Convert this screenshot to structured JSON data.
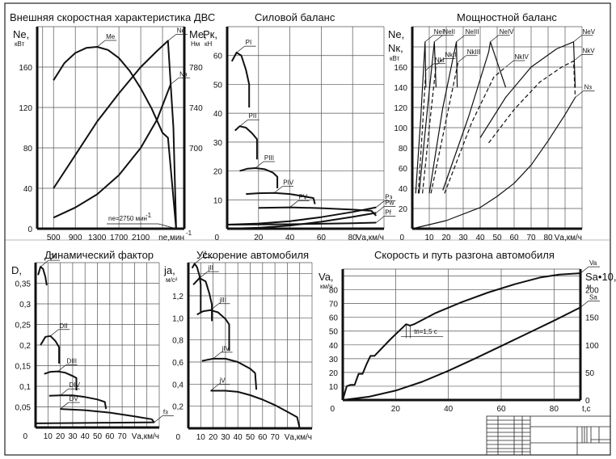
{
  "sheet": {
    "frame_color": "#222222",
    "grid_color": "#555555",
    "curve_color": "#111111"
  },
  "chart_data": [
    {
      "id": "engine",
      "type": "line",
      "title": "Внешняя скоростная характеристика ДВС",
      "xlabel": "nе,мин",
      "xlabel_sup": "-1",
      "ylabel": "Nе,",
      "ylabel_unit": "кВт",
      "y2label": "Mе,",
      "y2label_unit": "Нм",
      "xlim": [
        200,
        2900
      ],
      "ylim": [
        0,
        200
      ],
      "y2lim": [
        620,
        820
      ],
      "x_ticks": [
        500,
        900,
        1300,
        1700,
        2100
      ],
      "y_ticks": [
        0,
        40,
        80,
        120,
        160
      ],
      "y2_ticks": [
        700,
        740,
        780
      ],
      "grid": true,
      "annotation": "nе=2750 мин",
      "annotation_sup": "-1",
      "series": [
        {
          "name": "Mе",
          "axis": "right",
          "x": [
            500,
            700,
            900,
            1100,
            1300,
            1500,
            1700,
            1900,
            2100,
            2300,
            2500,
            2600,
            2750
          ],
          "y": [
            767,
            784,
            794,
            799,
            800,
            797,
            789,
            776,
            759,
            739,
            715,
            710,
            620
          ]
        },
        {
          "name": "Nе",
          "axis": "left",
          "x": [
            500,
            900,
            1300,
            1700,
            2100,
            2400,
            2600,
            2700,
            2750
          ],
          "y": [
            40,
            73,
            106,
            134,
            160,
            176,
            186,
            100,
            0
          ]
        },
        {
          "name": "Nз",
          "axis": "left",
          "x": [
            500,
            900,
            1300,
            1700,
            2100,
            2400,
            2650
          ],
          "y": [
            11,
            21,
            34,
            53,
            80,
            108,
            143
          ]
        }
      ]
    },
    {
      "id": "force",
      "type": "line",
      "title": "Силовой баланс",
      "xlabel": "Vа,км/ч",
      "ylabel": "Pк,",
      "ylabel_unit": "кН",
      "xlim": [
        0,
        100
      ],
      "ylim": [
        0,
        70
      ],
      "x_ticks": [
        20,
        40,
        60,
        80
      ],
      "y_ticks": [
        10,
        20,
        30,
        40,
        50,
        60
      ],
      "origin_label": "0",
      "grid": true,
      "series": [
        {
          "name": "PI",
          "x": [
            3,
            6,
            9,
            12,
            14,
            14
          ],
          "y": [
            58,
            61,
            60,
            55,
            50,
            42
          ]
        },
        {
          "name": "PII",
          "x": [
            5,
            8,
            12,
            16,
            19,
            19
          ],
          "y": [
            34,
            35.5,
            35,
            33,
            31,
            24
          ]
        },
        {
          "name": "PIII",
          "x": [
            8,
            13,
            18,
            24,
            29,
            32,
            32
          ],
          "y": [
            20,
            20.8,
            21,
            20.6,
            19.5,
            18,
            14
          ]
        },
        {
          "name": "PIV",
          "x": [
            12,
            20,
            30,
            40,
            48,
            55,
            56
          ],
          "y": [
            12,
            12.3,
            12.4,
            12,
            11.3,
            10.6,
            8.5
          ]
        },
        {
          "name": "PV",
          "x": [
            20,
            40,
            60,
            80,
            92,
            95
          ],
          "y": [
            7.2,
            7.4,
            7.1,
            6.6,
            6.2,
            4.5
          ]
        },
        {
          "name": "Pw",
          "x": [
            0,
            20,
            40,
            60,
            80,
            95
          ],
          "y": [
            0,
            0.3,
            1.1,
            2.4,
            4.1,
            5.5
          ]
        },
        {
          "name": "Pf",
          "x": [
            0,
            20,
            40,
            60,
            80,
            95
          ],
          "y": [
            1.4,
            1.45,
            1.55,
            1.7,
            1.9,
            2.1
          ]
        },
        {
          "name": "Pз",
          "x": [
            0,
            20,
            40,
            60,
            80,
            95
          ],
          "y": [
            1.4,
            1.8,
            2.6,
            4.0,
            5.8,
            7.4
          ]
        }
      ],
      "labels": [
        "PI",
        "PII",
        "PIII",
        "PIV",
        "PV",
        "Pw",
        "Pf",
        "Pз"
      ]
    },
    {
      "id": "power",
      "type": "line",
      "title": "Мощностной баланс",
      "xlabel": "Vа,км/ч",
      "ylabel": "Nе,",
      "ylabel2": "Nк,",
      "ylabel_unit": "кВт",
      "xlim": [
        0,
        100
      ],
      "ylim": [
        0,
        200
      ],
      "x_ticks": [
        10,
        20,
        30,
        40,
        50,
        60,
        70,
        80
      ],
      "y_ticks": [
        20,
        40,
        60,
        80,
        100,
        120,
        140,
        160
      ],
      "origin_label": "0",
      "grid": true,
      "series": [
        {
          "name": "NeI",
          "style": "solid",
          "x": [
            2,
            5,
            7.5,
            8
          ],
          "y": [
            35,
            110,
            185,
            140
          ]
        },
        {
          "name": "NkI",
          "style": "dashed",
          "x": [
            3.5,
            6,
            8
          ],
          "y": [
            35,
            100,
            157
          ]
        },
        {
          "name": "NeII",
          "style": "solid",
          "x": [
            4,
            9,
            13,
            14
          ],
          "y": [
            35,
            120,
            185,
            140
          ]
        },
        {
          "name": "NkII",
          "style": "dashed",
          "x": [
            6,
            10,
            14
          ],
          "y": [
            35,
            100,
            162
          ]
        },
        {
          "name": "NeIII",
          "style": "solid",
          "x": [
            10,
            18,
            26,
            26.5
          ],
          "y": [
            35,
            120,
            185,
            140
          ]
        },
        {
          "name": "NkIII",
          "style": "dashed",
          "x": [
            11,
            19,
            27
          ],
          "y": [
            35,
            100,
            165
          ]
        },
        {
          "name": "NeIV",
          "style": "solid",
          "x": [
            18,
            33,
            45,
            46,
            55
          ],
          "y": [
            38,
            110,
            175,
            185,
            140
          ]
        },
        {
          "name": "NkIV",
          "style": "dashed",
          "x": [
            19,
            35,
            48,
            55
          ],
          "y": [
            35,
            105,
            150,
            160
          ]
        },
        {
          "name": "NeV",
          "style": "solid",
          "x": [
            40,
            55,
            70,
            85,
            95,
            96
          ],
          "y": [
            90,
            130,
            160,
            178,
            185,
            140
          ]
        },
        {
          "name": "NkV",
          "style": "dashed",
          "x": [
            45,
            60,
            75,
            88,
            95,
            96
          ],
          "y": [
            85,
            118,
            145,
            160,
            166,
            130
          ]
        },
        {
          "name": "Nз",
          "style": "solid",
          "x": [
            0,
            20,
            40,
            50,
            60,
            70,
            80,
            90,
            96
          ],
          "y": [
            0,
            8,
            21,
            32,
            45,
            63,
            87,
            113,
            130
          ]
        }
      ],
      "labels": [
        "NeI",
        "NeII",
        "NeIII",
        "NeIV",
        "NeV",
        "NkI",
        "NkII",
        "NkIII",
        "NkIV",
        "NkV",
        "Nз"
      ]
    },
    {
      "id": "dynamic",
      "type": "line",
      "title": "Динамический фактор",
      "xlabel": "Vа,км/ч",
      "ylabel": "D,",
      "xlim": [
        0,
        100
      ],
      "ylim": [
        0,
        0.4
      ],
      "x_ticks": [
        10,
        20,
        30,
        40,
        50,
        60,
        70
      ],
      "x_tick_labels": [
        "10",
        "20",
        "30",
        "40",
        "50",
        "60",
        "70"
      ],
      "y_ticks": [
        0.05,
        0.1,
        0.15,
        0.2,
        0.25,
        0.3,
        0.35
      ],
      "y_tick_labels": [
        "0,05",
        "0,1",
        "0,15",
        "0,2",
        "0,25",
        "0,3",
        "0,35"
      ],
      "origin_label": "0",
      "grid": true,
      "series": [
        {
          "name": "DI",
          "x": [
            2,
            4,
            6,
            8,
            9
          ],
          "y": [
            0.37,
            0.39,
            0.385,
            0.365,
            0.345
          ]
        },
        {
          "name": "DII",
          "x": [
            4,
            8,
            12,
            16,
            19,
            19
          ],
          "y": [
            0.2,
            0.22,
            0.222,
            0.21,
            0.195,
            0.155
          ]
        },
        {
          "name": "DIII",
          "x": [
            7,
            12,
            18,
            24,
            30,
            33,
            33
          ],
          "y": [
            0.13,
            0.135,
            0.136,
            0.133,
            0.125,
            0.12,
            0.09
          ]
        },
        {
          "name": "DIV",
          "x": [
            11,
            20,
            30,
            40,
            50,
            56,
            57
          ],
          "y": [
            0.077,
            0.078,
            0.078,
            0.074,
            0.068,
            0.062,
            0.045
          ]
        },
        {
          "name": "DV",
          "x": [
            20,
            40,
            60,
            80,
            94,
            96
          ],
          "y": [
            0.045,
            0.042,
            0.036,
            0.027,
            0.02,
            0.012
          ]
        },
        {
          "name": "fз",
          "x": [
            0,
            20,
            40,
            60,
            80,
            96
          ],
          "y": [
            0.01,
            0.0105,
            0.011,
            0.0115,
            0.012,
            0.0125
          ]
        }
      ],
      "labels": [
        "DI",
        "DII",
        "DIII",
        "DIV",
        "DV",
        "fз"
      ]
    },
    {
      "id": "accel",
      "type": "line",
      "title": "Ускорение автомобиля",
      "xlabel": "Vа,км/ч",
      "ylabel": "ja,",
      "ylabel_unit": "м/с²",
      "xlim": [
        0,
        100
      ],
      "ylim": [
        0,
        1.5
      ],
      "x_ticks": [
        10,
        20,
        30,
        40,
        50,
        60,
        70
      ],
      "y_ticks": [
        0.2,
        0.4,
        0.6,
        0.8,
        1.0,
        1.2
      ],
      "y_tick_labels": [
        "0,2",
        "0,4",
        "0,6",
        "0,8",
        "1,0",
        "1,2"
      ],
      "origin_label": "0",
      "grid": true,
      "series": [
        {
          "name": "jI",
          "x": [
            3,
            5,
            7,
            9,
            10,
            10
          ],
          "y": [
            1.45,
            1.49,
            1.46,
            1.38,
            1.3,
            1.05
          ]
        },
        {
          "name": "jII",
          "x": [
            4,
            9,
            14,
            17,
            19,
            19
          ],
          "y": [
            1.3,
            1.36,
            1.33,
            1.22,
            1.12,
            0.97
          ]
        },
        {
          "name": "jIII",
          "x": [
            7,
            12,
            18,
            24,
            30,
            33,
            33
          ],
          "y": [
            1.03,
            1.06,
            1.07,
            1.05,
            0.99,
            0.94,
            0.7
          ]
        },
        {
          "name": "jIV",
          "x": [
            11,
            20,
            30,
            40,
            50,
            54,
            55
          ],
          "y": [
            0.61,
            0.63,
            0.63,
            0.6,
            0.54,
            0.5,
            0.35
          ]
        },
        {
          "name": "jV",
          "x": [
            18,
            30,
            40,
            50,
            60,
            70,
            80,
            88,
            90
          ],
          "y": [
            0.34,
            0.34,
            0.33,
            0.3,
            0.26,
            0.21,
            0.15,
            0.1,
            0.0
          ]
        }
      ],
      "labels": [
        "jI",
        "jII",
        "jIII",
        "jIV",
        "jV"
      ]
    },
    {
      "id": "runup",
      "type": "line",
      "title": "Скорость и  путь разгона автомобиля",
      "xlabel": "t,c",
      "ylabel": "Va,",
      "ylabel_unit": "км/ч",
      "y2label": "Sa•10,",
      "y2label_unit": "м",
      "xlim": [
        0,
        90
      ],
      "ylim": [
        0,
        95
      ],
      "y2lim": [
        0,
        237.5
      ],
      "x_ticks": [
        20,
        40,
        60,
        80
      ],
      "y_ticks": [
        10,
        20,
        30,
        40,
        50,
        60,
        70,
        80
      ],
      "y2_ticks": [
        0,
        50,
        100,
        150,
        200
      ],
      "origin_label": "0",
      "annotation": "tп=1,5 с",
      "grid": true,
      "series": [
        {
          "name": "Va",
          "axis": "left",
          "x": [
            0,
            1.5,
            3,
            4.5,
            6,
            7.5,
            9,
            10.5,
            12,
            18,
            24,
            25.5,
            27,
            35,
            45,
            55,
            65,
            75,
            82,
            90
          ],
          "y": [
            0,
            10,
            11,
            11,
            19,
            19,
            26,
            32,
            32,
            44,
            55,
            54,
            55,
            63,
            71,
            78,
            84,
            89,
            91,
            92
          ]
        },
        {
          "name": "Sa",
          "axis": "right",
          "x": [
            0,
            10,
            20,
            30,
            40,
            50,
            60,
            70,
            80,
            90
          ],
          "y": [
            0,
            6,
            17,
            33,
            53,
            75,
            98,
            121,
            144,
            168
          ]
        }
      ],
      "labels": [
        "Va",
        "Sa"
      ]
    }
  ]
}
